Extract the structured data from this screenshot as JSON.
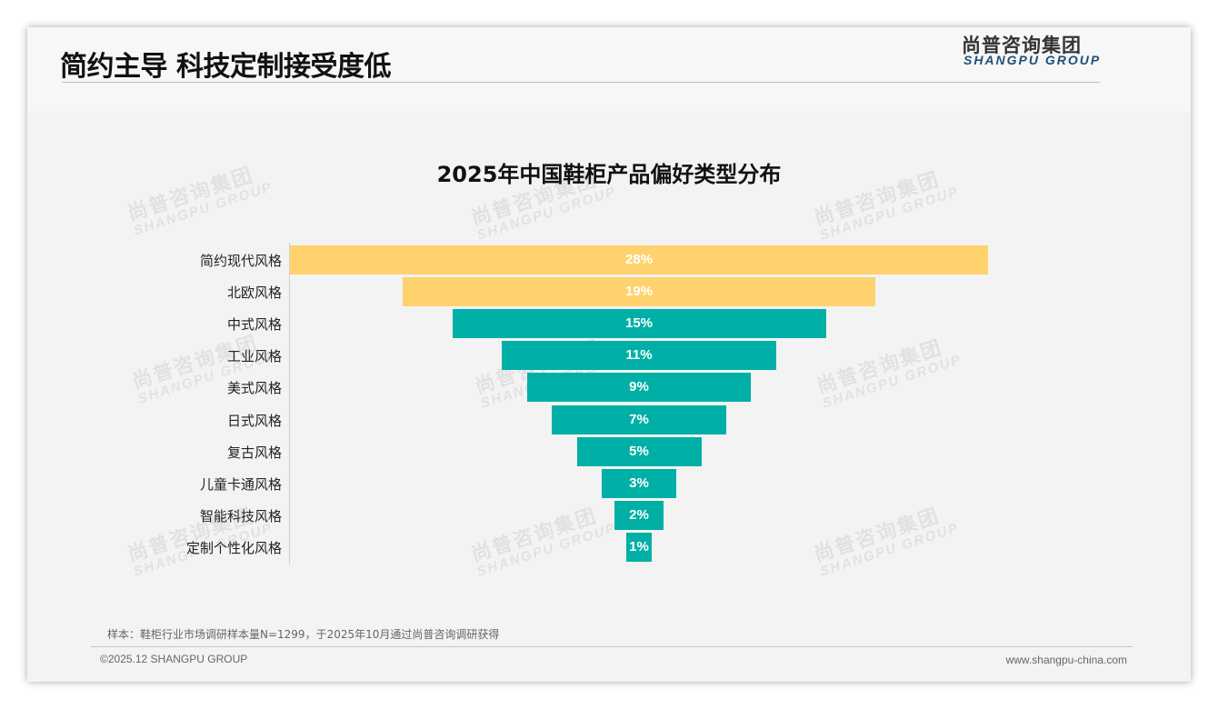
{
  "header": {
    "title": "简约主导 科技定制接受度低",
    "logo_cn": "尚普咨询集团",
    "logo_en": "SHANGPU GROUP"
  },
  "watermark": {
    "cn": "尚普咨询集团",
    "en": "SHANGPU GROUP"
  },
  "chart_data": {
    "type": "bar",
    "subtype": "funnel",
    "title": "2025年中国鞋柜产品偏好类型分布",
    "categories": [
      "简约现代风格",
      "北欧风格",
      "中式风格",
      "工业风格",
      "美式风格",
      "日式风格",
      "复古风格",
      "儿童卡通风格",
      "智能科技风格",
      "定制个性化风格"
    ],
    "values": [
      28,
      19,
      15,
      11,
      9,
      7,
      5,
      3,
      2,
      1
    ],
    "labels": [
      "28%",
      "19%",
      "15%",
      "11%",
      "9%",
      "7%",
      "5%",
      "3%",
      "2%",
      "1%"
    ],
    "colors": [
      "#FFD26E",
      "#FFD26E",
      "#00B0A6",
      "#00B0A6",
      "#00B0A6",
      "#00B0A6",
      "#00B0A6",
      "#00B0A6",
      "#00B0A6",
      "#00B0A6"
    ],
    "unit": "%"
  },
  "footer": {
    "note": "样本：鞋柜行业市场调研样本量N=1299，于2025年10月通过尚普咨询调研获得",
    "copyright": "©2025.12 SHANGPU GROUP",
    "url": "www.shangpu-china.com"
  }
}
